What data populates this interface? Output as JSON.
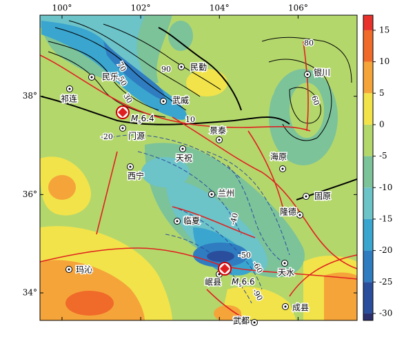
{
  "map": {
    "lon_lim": [
      99.44,
      107.5
    ],
    "lat_lim": [
      33.44,
      39.65
    ],
    "lon_ticks": [
      {
        "value": 100,
        "label": "100°"
      },
      {
        "value": 102,
        "label": "102°"
      },
      {
        "value": 104,
        "label": "104°"
      },
      {
        "value": 106,
        "label": "106°"
      }
    ],
    "lat_ticks": [
      {
        "value": 38,
        "label": "38°"
      },
      {
        "value": 36,
        "label": "36°"
      },
      {
        "value": 34,
        "label": "34°"
      }
    ],
    "cities": [
      "民乐",
      "祁连",
      "民勤",
      "银川",
      "武威",
      "门源",
      "景泰",
      "天祝",
      "西宁",
      "兰州",
      "海原",
      "固原",
      "临夏",
      "隆德",
      "玛沁",
      "岷县",
      "天水",
      "成县",
      "武都"
    ],
    "earthquakes": [
      {
        "symbol": "M",
        "sub": "s",
        "magnitude": "6.4"
      },
      {
        "symbol": "M",
        "sub": "s",
        "magnitude": "6.6"
      }
    ],
    "contour_labels": [
      "70",
      "50",
      "30",
      "90",
      "10",
      "-20",
      "80",
      "60",
      "-40",
      "-50",
      "-60",
      "-90"
    ]
  },
  "colorbar": {
    "lim": [
      -31.1,
      17.4
    ],
    "ticks": [
      -30,
      -25,
      -20,
      -15,
      -10,
      -5,
      0,
      5,
      10,
      15
    ],
    "colors": [
      "#2b2f6e",
      "#2a4e9c",
      "#2f7cc0",
      "#3aa5cf",
      "#6cc3c8",
      "#7cc39a",
      "#b4d76c",
      "#f2e34a",
      "#f5a43a",
      "#f06a2a",
      "#e8312a"
    ]
  }
}
